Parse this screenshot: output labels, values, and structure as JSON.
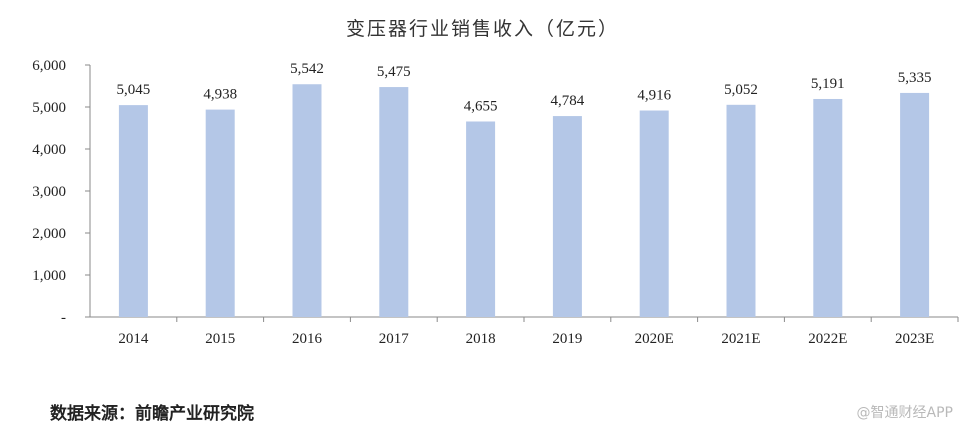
{
  "chart_data": {
    "type": "bar",
    "title": "变压器行业销售收入（亿元）",
    "categories": [
      "2014",
      "2015",
      "2016",
      "2017",
      "2018",
      "2019",
      "2020E",
      "2021E",
      "2022E",
      "2023E"
    ],
    "values": [
      5045,
      4938,
      5542,
      5475,
      4655,
      4784,
      4916,
      5052,
      5191,
      5335
    ],
    "value_labels": [
      "5,045",
      "4,938",
      "5,542",
      "5,475",
      "4,655",
      "4,784",
      "4,916",
      "5,052",
      "5,191",
      "5,335"
    ],
    "ylim": [
      0,
      6000
    ],
    "yticks": [
      0,
      1000,
      2000,
      3000,
      4000,
      5000,
      6000
    ],
    "ytick_labels": [
      "-",
      "1,000",
      "2,000",
      "3,000",
      "4,000",
      "5,000",
      "6,000"
    ],
    "xlabel": "",
    "ylabel": "",
    "grid": false,
    "legend": "none",
    "bar_color": "#b4c7e7"
  },
  "source": "数据来源：前瞻产业研究院",
  "watermark": "@智通财经APP"
}
